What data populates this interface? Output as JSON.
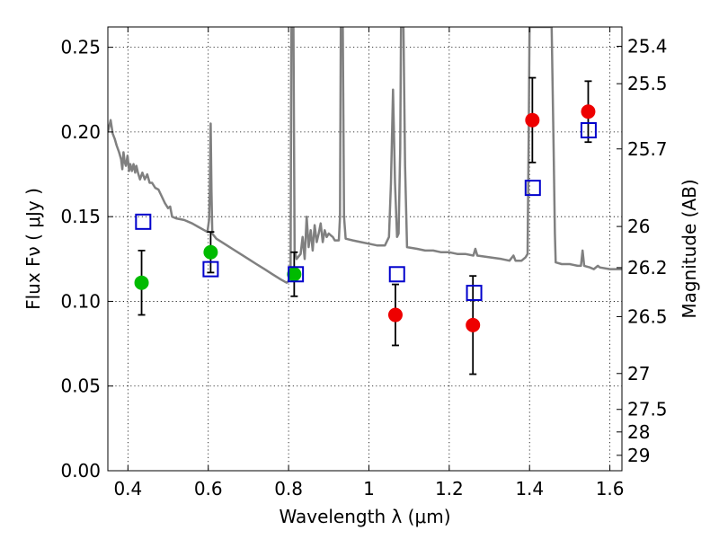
{
  "chart_data": {
    "type": "scatter",
    "title": "",
    "xlabel": "Wavelength  λ (μm)",
    "ylabel": "Flux  Fν  ( μJy )",
    "ylabel_right": "Magnitude (AB)",
    "xlim": [
      0.35,
      1.63
    ],
    "ylim": [
      0.0,
      0.262
    ],
    "grid": true,
    "x_ticks": [
      0.4,
      0.6,
      0.8,
      1.0,
      1.2,
      1.4,
      1.6
    ],
    "x_tick_labels": [
      "0.4",
      "0.6",
      "0.8",
      "1",
      "1.2",
      "1.4",
      "1.6"
    ],
    "y_ticks": [
      0.0,
      0.05,
      0.1,
      0.15,
      0.2,
      0.25
    ],
    "y_tick_labels": [
      "0.00",
      "0.05",
      "0.10",
      "0.15",
      "0.20",
      "0.25"
    ],
    "right_ticks": [
      {
        "label": "25.4",
        "flux": 0.2506
      },
      {
        "label": "25.5",
        "flux": 0.2285
      },
      {
        "label": "25.7",
        "flux": 0.19
      },
      {
        "label": "26",
        "flux": 0.1442
      },
      {
        "label": "26.2",
        "flux": 0.1199
      },
      {
        "label": "26.5",
        "flux": 0.091
      },
      {
        "label": "27",
        "flux": 0.0574
      },
      {
        "label": "27.5",
        "flux": 0.0362
      },
      {
        "label": "28",
        "flux": 0.0229
      },
      {
        "label": "29",
        "flux": 0.0091
      }
    ],
    "colors": {
      "model": "#808080",
      "optical": "#00bb00",
      "nir": "#ee0000",
      "model_band": "#0000cc"
    },
    "series": [
      {
        "kind": "line",
        "points": [
          [
            0.35,
            0.2
          ],
          [
            0.357,
            0.207
          ],
          [
            0.362,
            0.199
          ],
          [
            0.367,
            0.196
          ],
          [
            0.372,
            0.192
          ],
          [
            0.378,
            0.188
          ],
          [
            0.383,
            0.184
          ],
          [
            0.386,
            0.178
          ],
          [
            0.389,
            0.188
          ],
          [
            0.392,
            0.182
          ],
          [
            0.395,
            0.18
          ],
          [
            0.399,
            0.186
          ],
          [
            0.403,
            0.177
          ],
          [
            0.406,
            0.181
          ],
          [
            0.41,
            0.177
          ],
          [
            0.414,
            0.181
          ],
          [
            0.418,
            0.176
          ],
          [
            0.421,
            0.18
          ],
          [
            0.425,
            0.176
          ],
          [
            0.43,
            0.172
          ],
          [
            0.436,
            0.176
          ],
          [
            0.442,
            0.172
          ],
          [
            0.448,
            0.175
          ],
          [
            0.454,
            0.17
          ],
          [
            0.46,
            0.17
          ],
          [
            0.468,
            0.167
          ],
          [
            0.476,
            0.166
          ],
          [
            0.484,
            0.162
          ],
          [
            0.492,
            0.158
          ],
          [
            0.5,
            0.155
          ],
          [
            0.505,
            0.156
          ],
          [
            0.51,
            0.15
          ],
          [
            0.52,
            0.149
          ],
          [
            0.54,
            0.148
          ],
          [
            0.56,
            0.146
          ],
          [
            0.575,
            0.144
          ],
          [
            0.59,
            0.142
          ],
          [
            0.598,
            0.141
          ],
          [
            0.602,
            0.148
          ],
          [
            0.604,
            0.165
          ],
          [
            0.606,
            0.205
          ],
          [
            0.608,
            0.165
          ],
          [
            0.61,
            0.14
          ],
          [
            0.62,
            0.137
          ],
          [
            0.64,
            0.134
          ],
          [
            0.66,
            0.131
          ],
          [
            0.68,
            0.128
          ],
          [
            0.7,
            0.125
          ],
          [
            0.72,
            0.122
          ],
          [
            0.74,
            0.119
          ],
          [
            0.76,
            0.116
          ],
          [
            0.78,
            0.113
          ],
          [
            0.795,
            0.111
          ],
          [
            0.8,
            0.112
          ],
          [
            0.805,
            0.115
          ],
          [
            0.807,
            0.262
          ],
          [
            0.812,
            0.262
          ],
          [
            0.815,
            0.13
          ],
          [
            0.82,
            0.125
          ],
          [
            0.83,
            0.128
          ],
          [
            0.835,
            0.138
          ],
          [
            0.84,
            0.125
          ],
          [
            0.845,
            0.15
          ],
          [
            0.85,
            0.132
          ],
          [
            0.855,
            0.142
          ],
          [
            0.86,
            0.13
          ],
          [
            0.865,
            0.145
          ],
          [
            0.87,
            0.135
          ],
          [
            0.875,
            0.14
          ],
          [
            0.88,
            0.146
          ],
          [
            0.885,
            0.135
          ],
          [
            0.89,
            0.142
          ],
          [
            0.895,
            0.138
          ],
          [
            0.9,
            0.14
          ],
          [
            0.905,
            0.139
          ],
          [
            0.91,
            0.138
          ],
          [
            0.915,
            0.136
          ],
          [
            0.92,
            0.136
          ],
          [
            0.925,
            0.136
          ],
          [
            0.928,
            0.15
          ],
          [
            0.93,
            0.262
          ],
          [
            0.935,
            0.262
          ],
          [
            0.938,
            0.15
          ],
          [
            0.942,
            0.137
          ],
          [
            0.96,
            0.136
          ],
          [
            0.98,
            0.135
          ],
          [
            1.0,
            0.134
          ],
          [
            1.02,
            0.133
          ],
          [
            1.04,
            0.133
          ],
          [
            1.05,
            0.138
          ],
          [
            1.055,
            0.17
          ],
          [
            1.06,
            0.225
          ],
          [
            1.065,
            0.17
          ],
          [
            1.07,
            0.138
          ],
          [
            1.074,
            0.14
          ],
          [
            1.078,
            0.19
          ],
          [
            1.08,
            0.262
          ],
          [
            1.086,
            0.262
          ],
          [
            1.09,
            0.18
          ],
          [
            1.095,
            0.132
          ],
          [
            1.12,
            0.131
          ],
          [
            1.14,
            0.13
          ],
          [
            1.16,
            0.13
          ],
          [
            1.18,
            0.129
          ],
          [
            1.2,
            0.129
          ],
          [
            1.22,
            0.128
          ],
          [
            1.24,
            0.128
          ],
          [
            1.26,
            0.127
          ],
          [
            1.265,
            0.131
          ],
          [
            1.27,
            0.127
          ],
          [
            1.3,
            0.126
          ],
          [
            1.33,
            0.125
          ],
          [
            1.35,
            0.124
          ],
          [
            1.36,
            0.127
          ],
          [
            1.365,
            0.124
          ],
          [
            1.38,
            0.124
          ],
          [
            1.39,
            0.126
          ],
          [
            1.395,
            0.128
          ],
          [
            1.398,
            0.2
          ],
          [
            1.4,
            0.262
          ],
          [
            1.455,
            0.262
          ],
          [
            1.46,
            0.19
          ],
          [
            1.463,
            0.14
          ],
          [
            1.465,
            0.123
          ],
          [
            1.48,
            0.122
          ],
          [
            1.5,
            0.122
          ],
          [
            1.52,
            0.121
          ],
          [
            1.528,
            0.121
          ],
          [
            1.532,
            0.13
          ],
          [
            1.536,
            0.121
          ],
          [
            1.55,
            0.12
          ],
          [
            1.56,
            0.119
          ],
          [
            1.57,
            0.121
          ],
          [
            1.575,
            0.12
          ],
          [
            1.6,
            0.119
          ],
          [
            1.63,
            0.119
          ]
        ]
      },
      {
        "kind": "errorbar",
        "marker": "circle",
        "color_key": "optical",
        "points": [
          {
            "x": 0.434,
            "y": 0.111,
            "err": 0.019
          },
          {
            "x": 0.606,
            "y": 0.129,
            "err": 0.012
          },
          {
            "x": 0.814,
            "y": 0.116,
            "err": 0.013
          }
        ]
      },
      {
        "kind": "errorbar",
        "marker": "circle",
        "color_key": "nir",
        "points": [
          {
            "x": 1.066,
            "y": 0.092,
            "err": 0.018
          },
          {
            "x": 1.259,
            "y": 0.086,
            "err": 0.029
          },
          {
            "x": 1.407,
            "y": 0.207,
            "err": 0.025
          },
          {
            "x": 1.546,
            "y": 0.212,
            "err": 0.018
          }
        ]
      },
      {
        "kind": "scatter",
        "marker": "square",
        "color_key": "model_band",
        "points": [
          {
            "x": 0.438,
            "y": 0.147
          },
          {
            "x": 0.606,
            "y": 0.119
          },
          {
            "x": 0.818,
            "y": 0.116
          },
          {
            "x": 1.07,
            "y": 0.116
          },
          {
            "x": 1.262,
            "y": 0.105
          },
          {
            "x": 1.408,
            "y": 0.167
          },
          {
            "x": 1.547,
            "y": 0.201
          }
        ]
      }
    ]
  }
}
